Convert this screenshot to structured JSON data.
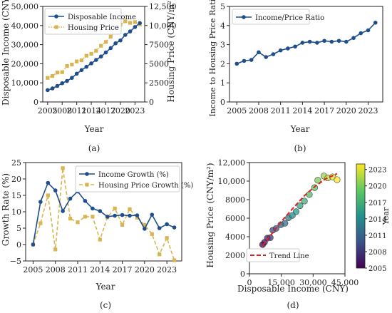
{
  "colors": {
    "navy": "#1f4e8c",
    "gold": "#d8b551",
    "red": "#e02020",
    "axis": "#222222"
  },
  "chart_data": [
    {
      "panel": "a",
      "type": "line",
      "panel_label": "(a)",
      "xlabel": "Year",
      "ylabel": "Disposable Income (CNY)",
      "y2label": "Housing Price (CNY/m²)",
      "xlim": [
        2004,
        2025
      ],
      "ylim": [
        0,
        50000
      ],
      "y2lim": [
        0,
        12500
      ],
      "x_ticks": [
        "2005",
        "2008",
        "2011",
        "2014",
        "2017",
        "2020",
        "2023"
      ],
      "y_ticks": [
        "0",
        "10,000",
        "20,000",
        "30,000",
        "40,000",
        "50,000"
      ],
      "y2_ticks": [
        "0",
        "2500",
        "5000",
        "7500",
        "10,000",
        "12,500"
      ],
      "legend": "upper-left",
      "x": [
        2005,
        2006,
        2007,
        2008,
        2009,
        2010,
        2011,
        2012,
        2013,
        2014,
        2015,
        2016,
        2017,
        2018,
        2019,
        2020,
        2021,
        2022,
        2023,
        2024
      ],
      "series": [
        {
          "name": "Disposable Income",
          "axis": "left",
          "style": "solid-circle",
          "values": [
            6200,
            7100,
            8400,
            9800,
            11000,
            12600,
            14800,
            16700,
            18400,
            20200,
            22000,
            23800,
            25900,
            28200,
            30700,
            32200,
            35100,
            36900,
            39200,
            41300
          ]
        },
        {
          "name": "Housing Price",
          "axis": "right",
          "style": "dotted-square",
          "values": [
            3150,
            3400,
            3850,
            3900,
            4700,
            4900,
            5300,
            5450,
            6050,
            6300,
            6700,
            7350,
            7850,
            8550,
            9300,
            10100,
            10550,
            10350,
            10450,
            10150
          ]
        }
      ]
    },
    {
      "panel": "b",
      "type": "line",
      "panel_label": "(b)",
      "xlabel": "Year",
      "ylabel": "Income to Housing Price Ratio",
      "xlim": [
        2004,
        2025
      ],
      "ylim": [
        0,
        5
      ],
      "x_ticks": [
        "2005",
        "2008",
        "2011",
        "2014",
        "2017",
        "2020",
        "2023"
      ],
      "y_ticks": [
        "0",
        "1",
        "2",
        "3",
        "4",
        "5"
      ],
      "legend": "upper-left",
      "x": [
        2005,
        2006,
        2007,
        2008,
        2009,
        2010,
        2011,
        2012,
        2013,
        2014,
        2015,
        2016,
        2017,
        2018,
        2019,
        2020,
        2021,
        2022,
        2023,
        2024
      ],
      "series": [
        {
          "name": "Income/Price Ratio",
          "style": "solid-circle",
          "values": [
            2.0,
            2.15,
            2.2,
            2.6,
            2.35,
            2.5,
            2.7,
            2.8,
            2.9,
            3.1,
            3.15,
            3.1,
            3.2,
            3.15,
            3.2,
            3.15,
            3.35,
            3.6,
            3.75,
            4.15
          ]
        }
      ]
    },
    {
      "panel": "c",
      "type": "line",
      "panel_label": "(c)",
      "xlabel": "Year",
      "ylabel": "Growth Rate (%)",
      "xlim": [
        2004,
        2025
      ],
      "ylim": [
        -5,
        25
      ],
      "x_ticks": [
        "2005",
        "2008",
        "2011",
        "2014",
        "2017",
        "2020",
        "2023"
      ],
      "y_ticks": [
        "−5",
        "0",
        "5",
        "10",
        "15",
        "20",
        "25"
      ],
      "legend": "upper-right",
      "x": [
        2005,
        2006,
        2007,
        2008,
        2009,
        2010,
        2011,
        2012,
        2013,
        2014,
        2015,
        2016,
        2017,
        2018,
        2019,
        2020,
        2021,
        2022,
        2023,
        2024
      ],
      "series": [
        {
          "name": "Income Growth (%)",
          "style": "solid-circle",
          "values": [
            0,
            13,
            18.8,
            16.5,
            10.2,
            14,
            16.2,
            13.3,
            11,
            10.2,
            8.5,
            8.8,
            9,
            8.8,
            8.9,
            4.8,
            9.1,
            5,
            6.2,
            5.2
          ]
        },
        {
          "name": "Housing Price Growth (%)",
          "style": "dashed-square",
          "values": [
            0,
            6.5,
            15,
            -1.5,
            23.3,
            7.9,
            6.8,
            8.5,
            8.5,
            1.5,
            8.3,
            11,
            6,
            10.8,
            8.2,
            6,
            3.2,
            -3,
            2,
            -4.8
          ]
        }
      ]
    },
    {
      "panel": "d",
      "type": "scatter",
      "panel_label": "(d)",
      "xlabel": "Disposable Income (CNY)",
      "ylabel": "Housing Price (CNY/m²)",
      "xlim": [
        0,
        45000
      ],
      "ylim": [
        0,
        12000
      ],
      "x_ticks": [
        "0",
        "15,000",
        "30,000",
        "45,000"
      ],
      "y_ticks": [
        "0",
        "2000",
        "4000",
        "6000",
        "8000",
        "10,000",
        "12,000"
      ],
      "legend": "lower-left",
      "colorbar": {
        "label": "Year",
        "range": [
          2005,
          2024
        ],
        "ticks": [
          "2005",
          "2008",
          "2011",
          "2014",
          "2017",
          "2020",
          "2023"
        ]
      },
      "points": [
        {
          "x": 6200,
          "y": 3150,
          "year": 2005
        },
        {
          "x": 7100,
          "y": 3400,
          "year": 2006
        },
        {
          "x": 8400,
          "y": 3850,
          "year": 2007
        },
        {
          "x": 9800,
          "y": 3900,
          "year": 2008
        },
        {
          "x": 11000,
          "y": 4700,
          "year": 2009
        },
        {
          "x": 12600,
          "y": 4900,
          "year": 2010
        },
        {
          "x": 14800,
          "y": 5300,
          "year": 2011
        },
        {
          "x": 16700,
          "y": 5450,
          "year": 2012
        },
        {
          "x": 18400,
          "y": 6050,
          "year": 2013
        },
        {
          "x": 20200,
          "y": 6300,
          "year": 2014
        },
        {
          "x": 22000,
          "y": 6700,
          "year": 2015
        },
        {
          "x": 23800,
          "y": 7350,
          "year": 2016
        },
        {
          "x": 25900,
          "y": 7850,
          "year": 2017
        },
        {
          "x": 28200,
          "y": 8550,
          "year": 2018
        },
        {
          "x": 30700,
          "y": 9300,
          "year": 2019
        },
        {
          "x": 32200,
          "y": 10100,
          "year": 2020
        },
        {
          "x": 35100,
          "y": 10550,
          "year": 2021
        },
        {
          "x": 36900,
          "y": 10350,
          "year": 2022
        },
        {
          "x": 39200,
          "y": 10450,
          "year": 2023
        },
        {
          "x": 41300,
          "y": 10150,
          "year": 2024
        }
      ],
      "trend": {
        "name": "Trend Line",
        "x": [
          6200,
          11000,
          16000,
          21000,
          26000,
          31000,
          36000,
          41300
        ],
        "y": [
          3050,
          4450,
          5900,
          7200,
          8450,
          9450,
          10250,
          10800
        ]
      }
    }
  ]
}
